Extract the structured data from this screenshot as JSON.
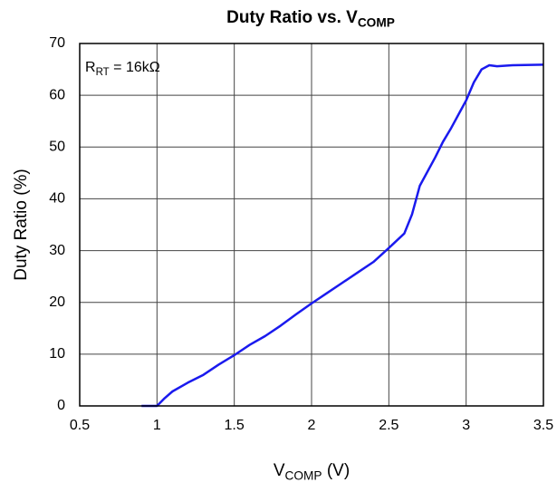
{
  "chart_data": {
    "type": "line",
    "title": [
      {
        "text": "Duty Ratio vs. V"
      },
      {
        "text": "COMP",
        "sub": true
      }
    ],
    "xlabel": [
      {
        "text": "V"
      },
      {
        "text": "COMP",
        "sub": true
      },
      {
        "text": " (V)"
      }
    ],
    "ylabel": "Duty Ratio (%)",
    "annotation": [
      {
        "text": "R"
      },
      {
        "text": "RT",
        "sub": true
      },
      {
        "text": " = 16kΩ"
      }
    ],
    "x": [
      0.9,
      1.0,
      1.05,
      1.1,
      1.2,
      1.3,
      1.4,
      1.5,
      1.6,
      1.7,
      1.8,
      1.9,
      2.0,
      2.1,
      2.2,
      2.3,
      2.4,
      2.5,
      2.6,
      2.65,
      2.7,
      2.8,
      2.85,
      2.9,
      3.0,
      3.05,
      3.1,
      3.15,
      3.2,
      3.3,
      3.5
    ],
    "series": [
      {
        "name": "Duty Ratio",
        "color": "#1a1aee",
        "values": [
          0,
          0,
          1.5,
          2.8,
          4.5,
          6,
          8,
          9.8,
          11.8,
          13.5,
          15.5,
          17.7,
          19.8,
          21.8,
          23.8,
          25.8,
          27.8,
          30.5,
          33.3,
          37,
          42.5,
          48,
          51,
          53.5,
          59,
          62.5,
          65,
          65.8,
          65.6,
          65.8,
          65.9
        ]
      }
    ],
    "xlim": [
      0.5,
      3.5
    ],
    "xticks": [
      0.5,
      1,
      1.5,
      2,
      2.5,
      3,
      3.5
    ],
    "ylim": [
      0,
      70
    ],
    "yticks": [
      0,
      10,
      20,
      30,
      40,
      50,
      60,
      70
    ],
    "grid": true
  }
}
